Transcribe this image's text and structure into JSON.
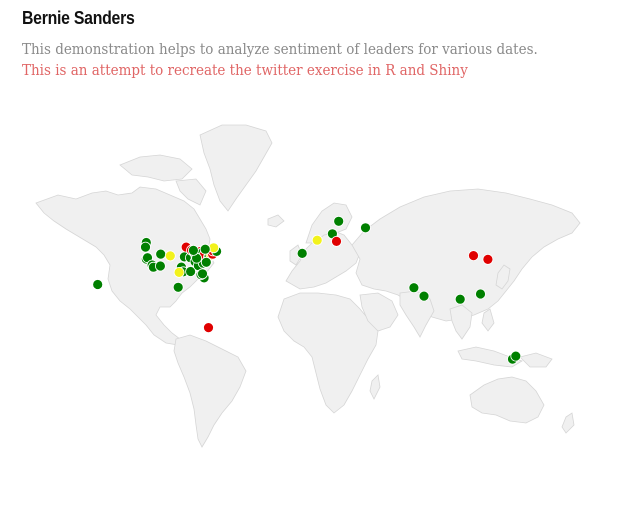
{
  "header": {
    "title": "Bernie Sanders",
    "subtitle": "This demonstration helps to analyze sentiment of leaders for various dates.",
    "subtitle2": "This is an attempt to recreate the twitter exercise in R and Shiny"
  },
  "colors": {
    "positive": "#008000",
    "neutral": "#f2f21c",
    "negative": "#e00000",
    "land": "#f0f0f0",
    "border": "#d6d6d6"
  },
  "legend_meaning": {
    "green": "positive",
    "yellow": "neutral",
    "red": "negative"
  },
  "markers": [
    {
      "lon": -157.9,
      "lat": 21.3,
      "sentiment": "positive"
    },
    {
      "lon": -122.4,
      "lat": 47.6,
      "sentiment": "positive"
    },
    {
      "lon": -123.0,
      "lat": 44.9,
      "sentiment": "positive"
    },
    {
      "lon": -122.4,
      "lat": 37.8,
      "sentiment": "positive"
    },
    {
      "lon": -121.5,
      "lat": 38.6,
      "sentiment": "positive"
    },
    {
      "lon": -118.2,
      "lat": 34.1,
      "sentiment": "positive"
    },
    {
      "lon": -117.2,
      "lat": 32.7,
      "sentiment": "positive"
    },
    {
      "lon": -112.1,
      "lat": 33.5,
      "sentiment": "positive"
    },
    {
      "lon": -111.9,
      "lat": 40.8,
      "sentiment": "positive"
    },
    {
      "lon": -104.9,
      "lat": 39.7,
      "sentiment": "neutral"
    },
    {
      "lon": -97.7,
      "lat": 30.3,
      "sentiment": "positive"
    },
    {
      "lon": -96.8,
      "lat": 32.8,
      "sentiment": "positive"
    },
    {
      "lon": -95.4,
      "lat": 29.8,
      "sentiment": "positive"
    },
    {
      "lon": -98.5,
      "lat": 29.4,
      "sentiment": "neutral"
    },
    {
      "lon": -94.6,
      "lat": 39.1,
      "sentiment": "positive"
    },
    {
      "lon": -93.3,
      "lat": 44.9,
      "sentiment": "negative"
    },
    {
      "lon": -90.2,
      "lat": 38.6,
      "sentiment": "positive"
    },
    {
      "lon": -90.1,
      "lat": 30.0,
      "sentiment": "positive"
    },
    {
      "lon": -89.4,
      "lat": 43.1,
      "sentiment": "negative"
    },
    {
      "lon": -87.6,
      "lat": 41.9,
      "sentiment": "negative"
    },
    {
      "lon": -86.8,
      "lat": 36.2,
      "sentiment": "positive"
    },
    {
      "lon": -86.2,
      "lat": 39.8,
      "sentiment": "positive"
    },
    {
      "lon": -84.4,
      "lat": 33.7,
      "sentiment": "positive"
    },
    {
      "lon": -83.0,
      "lat": 40.0,
      "sentiment": "positive"
    },
    {
      "lon": -83.0,
      "lat": 42.3,
      "sentiment": "negative"
    },
    {
      "lon": -81.7,
      "lat": 41.5,
      "sentiment": "positive"
    },
    {
      "lon": -80.8,
      "lat": 35.2,
      "sentiment": "positive"
    },
    {
      "lon": -80.2,
      "lat": 25.8,
      "sentiment": "positive"
    },
    {
      "lon": -82.5,
      "lat": 27.9,
      "sentiment": "positive"
    },
    {
      "lon": -81.4,
      "lat": 28.5,
      "sentiment": "positive"
    },
    {
      "lon": -80.0,
      "lat": 40.4,
      "sentiment": "negative"
    },
    {
      "lon": -77.0,
      "lat": 38.9,
      "sentiment": "negative"
    },
    {
      "lon": -76.6,
      "lat": 39.3,
      "sentiment": "positive"
    },
    {
      "lon": -75.2,
      "lat": 40.0,
      "sentiment": "neutral"
    },
    {
      "lon": -74.0,
      "lat": 40.7,
      "sentiment": "negative"
    },
    {
      "lon": -73.8,
      "lat": 42.7,
      "sentiment": "negative"
    },
    {
      "lon": -71.1,
      "lat": 42.4,
      "sentiment": "positive"
    },
    {
      "lon": -73.2,
      "lat": 44.5,
      "sentiment": "neutral"
    },
    {
      "lon": -78.6,
      "lat": 35.8,
      "sentiment": "positive"
    },
    {
      "lon": -79.4,
      "lat": 43.7,
      "sentiment": "positive"
    },
    {
      "lon": -85.7,
      "lat": 38.3,
      "sentiment": "positive"
    },
    {
      "lon": -88.0,
      "lat": 43.0,
      "sentiment": "positive"
    },
    {
      "lon": -99.1,
      "lat": 19.4,
      "sentiment": "positive"
    },
    {
      "lon": -77.0,
      "lat": -12.0,
      "sentiment": "negative"
    },
    {
      "lon": 18.0,
      "lat": 59.3,
      "sentiment": "positive"
    },
    {
      "lon": 37.6,
      "lat": 55.8,
      "sentiment": "positive"
    },
    {
      "lon": 2.3,
      "lat": 48.9,
      "sentiment": "neutral"
    },
    {
      "lon": 13.4,
      "lat": 52.5,
      "sentiment": "positive"
    },
    {
      "lon": 16.4,
      "lat": 48.2,
      "sentiment": "negative"
    },
    {
      "lon": -8.6,
      "lat": 41.2,
      "sentiment": "positive"
    },
    {
      "lon": 72.9,
      "lat": 19.1,
      "sentiment": "positive"
    },
    {
      "lon": 80.3,
      "lat": 13.1,
      "sentiment": "positive"
    },
    {
      "lon": 116.4,
      "lat": 39.9,
      "sentiment": "negative"
    },
    {
      "lon": 126.9,
      "lat": 37.6,
      "sentiment": "negative"
    },
    {
      "lon": 121.5,
      "lat": 14.6,
      "sentiment": "positive"
    },
    {
      "lon": 106.7,
      "lat": 10.8,
      "sentiment": "positive"
    },
    {
      "lon": 144.9,
      "lat": -37.8,
      "sentiment": "positive"
    },
    {
      "lon": 147.3,
      "lat": -35.3,
      "sentiment": "positive"
    }
  ]
}
